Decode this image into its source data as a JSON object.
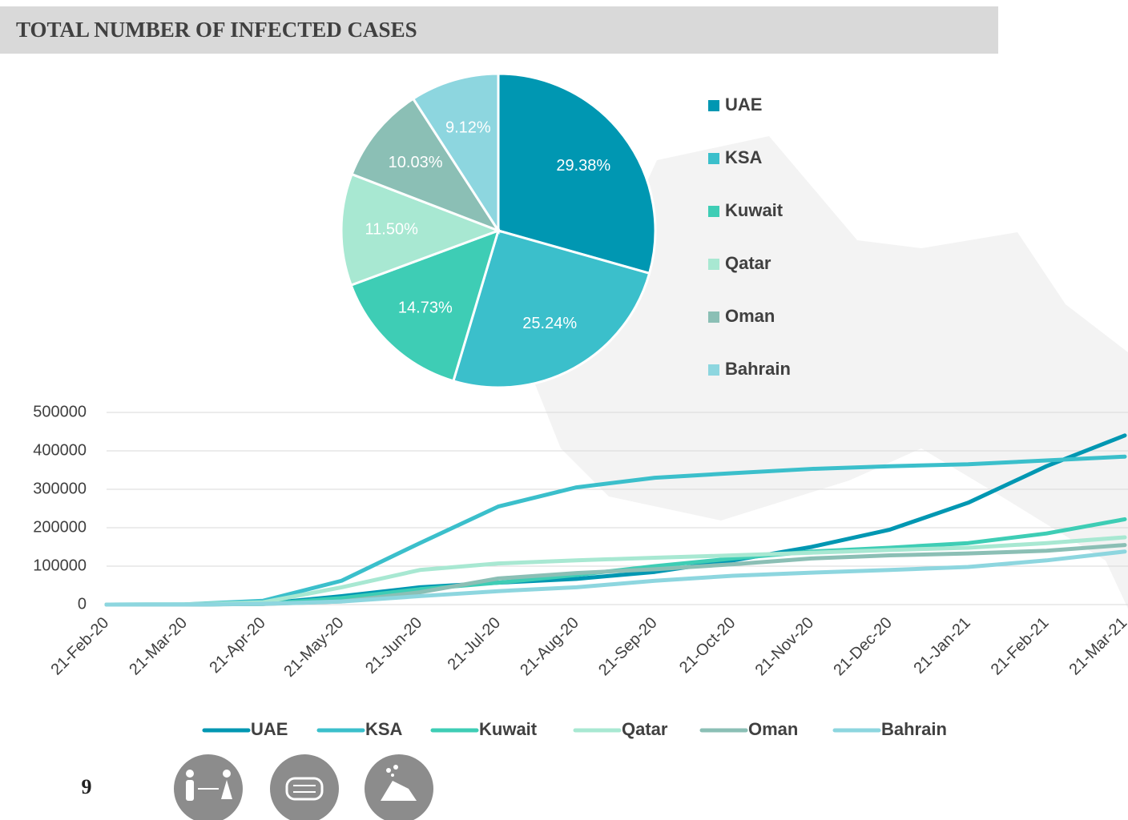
{
  "header": {
    "title": "TOTAL NUMBER OF INFECTED CASES"
  },
  "page_number": "9",
  "chart_data": [
    {
      "type": "pie",
      "categories": [
        "UAE",
        "KSA",
        "Kuwait",
        "Qatar",
        "Oman",
        "Bahrain"
      ],
      "values": [
        29.38,
        25.24,
        14.73,
        11.5,
        10.03,
        9.12
      ],
      "value_labels": [
        "29.38%",
        "25.24%",
        "14.73%",
        "11.50%",
        "10.03%",
        "9.12%"
      ],
      "colors": [
        "#0097b2",
        "#3bbfcb",
        "#3ecdb5",
        "#a8e8d2",
        "#8bbfb5",
        "#8dd6df"
      ],
      "legend": "right"
    },
    {
      "type": "line",
      "categories": [
        "21-Feb-20",
        "21-Mar-20",
        "21-Apr-20",
        "21-May-20",
        "21-Jun-20",
        "21-Jul-20",
        "21-Aug-20",
        "21-Sep-20",
        "21-Oct-20",
        "21-Nov-20",
        "21-Dec-20",
        "21-Jan-21",
        "21-Feb-21",
        "21-Mar-21"
      ],
      "series": [
        {
          "name": "UAE",
          "color": "#0097b2",
          "values": [
            0,
            100,
            2000,
            22000,
            45000,
            57000,
            67000,
            85000,
            115000,
            150000,
            195000,
            265000,
            360000,
            440000
          ]
        },
        {
          "name": "KSA",
          "color": "#3bbfcb",
          "values": [
            0,
            500,
            10000,
            62000,
            160000,
            255000,
            305000,
            330000,
            342000,
            353000,
            360000,
            365000,
            375000,
            385000
          ]
        },
        {
          "name": "Kuwait",
          "color": "#3ecdb5",
          "values": [
            0,
            200,
            1500,
            17000,
            40000,
            57000,
            77000,
            100000,
            120000,
            138000,
            148000,
            160000,
            185000,
            222000
          ]
        },
        {
          "name": "Qatar",
          "color": "#a8e8d2",
          "values": [
            0,
            500,
            6000,
            45000,
            90000,
            107000,
            115000,
            122000,
            128000,
            135000,
            142000,
            148000,
            160000,
            175000
          ]
        },
        {
          "name": "Oman",
          "color": "#8bbfb5",
          "values": [
            0,
            50,
            1500,
            8000,
            32000,
            68000,
            82000,
            92000,
            105000,
            120000,
            128000,
            133000,
            140000,
            155000
          ]
        },
        {
          "name": "Bahrain",
          "color": "#8dd6df",
          "values": [
            0,
            200,
            2000,
            8000,
            22000,
            35000,
            45000,
            62000,
            75000,
            83000,
            90000,
            98000,
            115000,
            138000
          ]
        }
      ],
      "ylim": [
        0,
        500000
      ],
      "yticks": [
        0,
        100000,
        200000,
        300000,
        400000,
        500000
      ],
      "grid": true,
      "legend": "bottom"
    }
  ]
}
